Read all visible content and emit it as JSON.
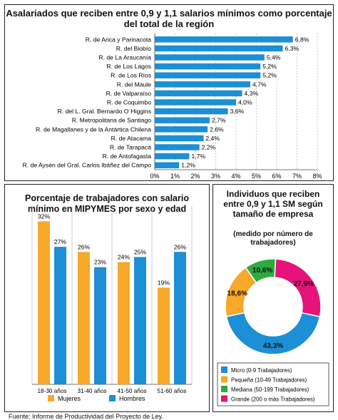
{
  "source": "Fuente: Informe de Productividad del Proyecto de Ley.",
  "chart_data": [
    {
      "type": "bar",
      "orientation": "horizontal",
      "title": "Asalariados que reciben entre 0,9 y 1,1 salarios mínimos como porcentaje del total de la región",
      "categories": [
        "R. de Arica y Parinacota",
        "R. del Biobío",
        "R. de La Araucanía",
        "R. de Los Lagos",
        "R. de Los Ríos",
        "R. del Maule",
        "R. de Valparaíso",
        "R. de Coquimbo",
        "R. del L. Gral. Bernardo O´Higgins",
        "R. Metropolitana de Santiago",
        "R. de Magallanes y de la Antártica Chilena",
        "R. de Atacama",
        "R. de Tarapacá",
        "R. de Antofagasta",
        "R. de Aysén del Gral. Carlos Ibáñez del Campo"
      ],
      "values": [
        6.8,
        6.3,
        5.4,
        5.2,
        5.2,
        4.7,
        4.3,
        4.0,
        3.6,
        2.7,
        2.6,
        2.4,
        2.2,
        1.7,
        1.2
      ],
      "value_labels": [
        "6,8%",
        "6,3%",
        "5,4%",
        "5,2%",
        "5,2%",
        "4,7%",
        "4,3%",
        "4,0%",
        "3,6%",
        "2,7%",
        "2,6%",
        "2,4%",
        "2,2%",
        "1,7%",
        "1,2%"
      ],
      "xlim": [
        0,
        8
      ],
      "xticks": [
        "0%",
        "1%",
        "2%",
        "3%",
        "4%",
        "5%",
        "6%",
        "7%",
        "8%"
      ],
      "grid": true,
      "color": "#1c8fd6"
    },
    {
      "type": "bar",
      "title": "Porcentaje de trabajadores con salario mínimo en MIPYMES por sexo y edad",
      "categories": [
        "18-30 años",
        "31-40 años",
        "41-50 años",
        "51-60 años"
      ],
      "series": [
        {
          "name": "Mujeres",
          "values": [
            32,
            26,
            24,
            19
          ],
          "labels": [
            "32%",
            "26%",
            "24%",
            "19%"
          ],
          "color": "#f7a92a"
        },
        {
          "name": "Hombres",
          "values": [
            27,
            23,
            25,
            26
          ],
          "labels": [
            "27%",
            "23%",
            "25%",
            "26%"
          ],
          "color": "#1c8fd6"
        }
      ],
      "ylim": [
        0,
        35
      ],
      "grid": true,
      "legend": "bottom"
    },
    {
      "type": "pie",
      "donut": true,
      "title": "Individuos que reciben entre 0,9 y 1,1 SM según tamaño de empresa",
      "subtitle": "(medido por número de trabajadores)",
      "slices": [
        {
          "name": "Micro (0-9 Trabajadores)",
          "value": 43.3,
          "label": "43,3%",
          "color": "#1c8fd6"
        },
        {
          "name": "Pequeña (10-49 Trabajadores)",
          "value": 18.6,
          "label": "18,6%",
          "color": "#f7a92a"
        },
        {
          "name": "Mediana (50-199 Trabajadores)",
          "value": 10.6,
          "label": "10,6%",
          "color": "#2eab3f"
        },
        {
          "name": "Grande (200 o más Trabajadores)",
          "value": 27.5,
          "label": "27,5%",
          "color": "#e5137a"
        }
      ],
      "legend": "bottom"
    }
  ]
}
